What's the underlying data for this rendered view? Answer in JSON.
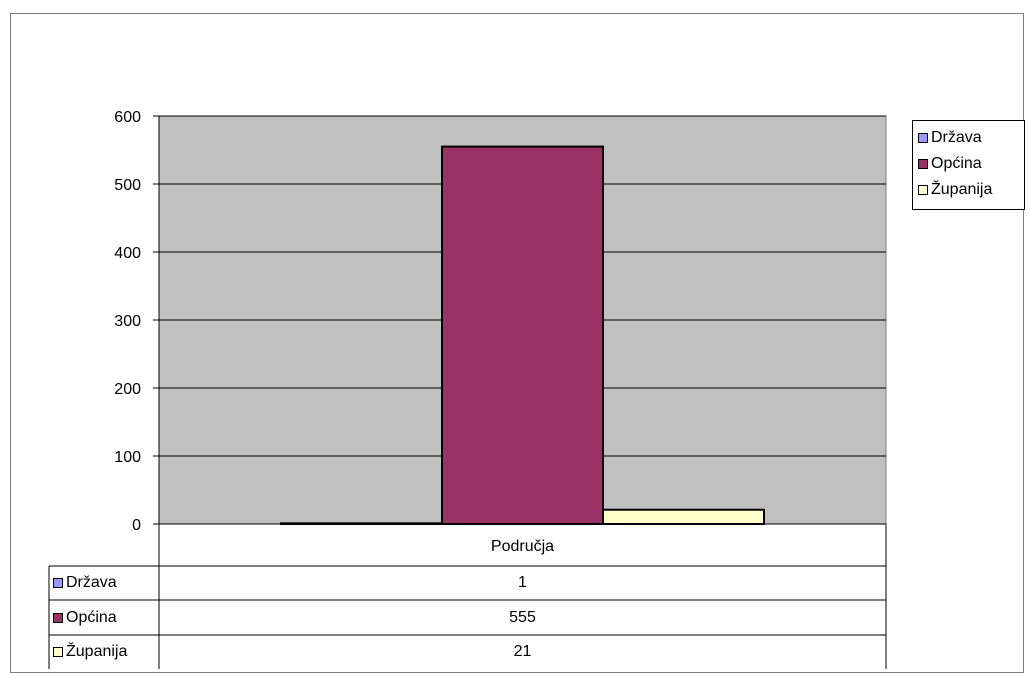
{
  "chart_data": {
    "type": "bar",
    "categories": [
      "Područja"
    ],
    "series": [
      {
        "name": "Država",
        "values": [
          1
        ],
        "color": "#9999ff"
      },
      {
        "name": "Općina",
        "values": [
          555
        ],
        "color": "#993366"
      },
      {
        "name": "Županija",
        "values": [
          21
        ],
        "color": "#ffffcc"
      }
    ],
    "ylim": [
      0,
      600
    ],
    "yticks": [
      0,
      100,
      200,
      300,
      400,
      500,
      600
    ],
    "grid": true,
    "plot_background": "#c0c0c0",
    "legend_position": "right",
    "data_table": true
  }
}
